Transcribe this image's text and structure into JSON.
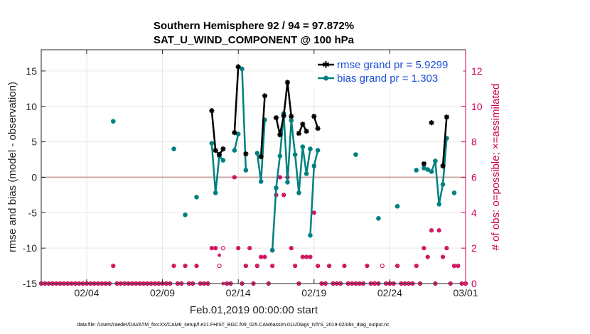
{
  "chart_data": {
    "type": "line",
    "title": "Southern Hemisphere 92 / 94 = 97.872%",
    "subtitle": "SAT_U_WIND_COMPONENT @ 100 hPa",
    "xlabel": "Feb.01,2019 00:00:00 start",
    "ylabel": "rmse and bias (model - observation)",
    "ylabel_right": "# of obs: o=possible; ×=assimilated",
    "footer": "data file: /Users/raeder/DAI/ATM_forcXX/CAM6_setup/f.e21.FHIST_BGC.f09_025.CAM6assim.011/Diags_NTrS_2019-02/obs_diag_output.nc",
    "xlim": [
      1,
      29
    ],
    "ylim": [
      -15,
      18
    ],
    "ylim_right": [
      0,
      13.2
    ],
    "xticks": [
      {
        "x": 4,
        "label": "02/04"
      },
      {
        "x": 9,
        "label": "02/09"
      },
      {
        "x": 14,
        "label": "02/14"
      },
      {
        "x": 19,
        "label": "02/19"
      },
      {
        "x": 24,
        "label": "02/24"
      },
      {
        "x": 29,
        "label": "03/01"
      }
    ],
    "yticks": [
      -15,
      -10,
      -5,
      0,
      5,
      10,
      15
    ],
    "yticks_right": [
      0,
      2,
      4,
      6,
      8,
      10,
      12
    ],
    "colors": {
      "rmse": "#000000",
      "bias": "#008080",
      "obs": "#cc0055",
      "zero": "#c9a9a6",
      "grid": "#e6e6e6"
    },
    "series": [
      {
        "name": "rmse",
        "label": "rmse grand pr = 5.9299",
        "points": [
          [
            5.75,
            null
          ],
          [
            12.25,
            9.4
          ],
          [
            12.5,
            3.8
          ],
          [
            12.75,
            3.2
          ],
          [
            13.0,
            4.0
          ],
          [
            13.25,
            null
          ],
          [
            13.75,
            6.3
          ],
          [
            14.0,
            15.6
          ],
          [
            14.25,
            null
          ],
          [
            14.5,
            3.3
          ],
          [
            14.75,
            null
          ],
          [
            15.5,
            2.9
          ],
          [
            15.75,
            11.5
          ],
          [
            16.0,
            null
          ],
          [
            16.5,
            8.4
          ],
          [
            16.75,
            6.0
          ],
          [
            17.0,
            8.7
          ],
          [
            17.25,
            13.4
          ],
          [
            17.5,
            8.6
          ],
          [
            17.75,
            null
          ],
          [
            18.0,
            6.2
          ],
          [
            18.25,
            7.5
          ],
          [
            18.5,
            6.5
          ],
          [
            18.75,
            null
          ],
          [
            19.0,
            8.6
          ],
          [
            19.25,
            6.9
          ],
          [
            19.5,
            null
          ],
          [
            26.25,
            1.9
          ],
          [
            26.5,
            null
          ],
          [
            26.75,
            7.7
          ],
          [
            27.0,
            null
          ],
          [
            27.5,
            1.6
          ],
          [
            27.75,
            8.5
          ],
          [
            28.0,
            null
          ]
        ]
      },
      {
        "name": "bias",
        "label": "bias grand pr = 1.303",
        "points": [
          [
            5.75,
            7.9
          ],
          [
            6.0,
            null
          ],
          [
            9.75,
            4.0
          ],
          [
            10.0,
            null
          ],
          [
            10.5,
            -5.3
          ],
          [
            10.75,
            null
          ],
          [
            11.25,
            -2.8
          ],
          [
            11.5,
            null
          ],
          [
            12.25,
            4.8
          ],
          [
            12.5,
            -2.2
          ],
          [
            12.75,
            3.0
          ],
          [
            13.0,
            2.4
          ],
          [
            13.25,
            null
          ],
          [
            13.75,
            3.8
          ],
          [
            14.0,
            6.1
          ],
          [
            14.25,
            null
          ],
          [
            14.25,
            15.3
          ],
          [
            14.5,
            1.0
          ],
          [
            14.75,
            null
          ],
          [
            15.25,
            3.4
          ],
          [
            15.5,
            -0.6
          ],
          [
            15.75,
            8.1
          ],
          [
            16.0,
            null
          ],
          [
            16.25,
            -10.3
          ],
          [
            16.5,
            -1.5
          ],
          [
            16.75,
            3.0
          ],
          [
            17.0,
            9.0
          ],
          [
            17.25,
            -0.7
          ],
          [
            17.5,
            8.0
          ],
          [
            17.75,
            3.2
          ],
          [
            18.0,
            -2.2
          ],
          [
            18.25,
            4.3
          ],
          [
            18.5,
            0.5
          ],
          [
            18.75,
            4.0
          ],
          [
            19.0,
            null
          ],
          [
            18.75,
            -8.2
          ],
          [
            19.0,
            1.6
          ],
          [
            19.25,
            3.8
          ],
          [
            19.5,
            null
          ],
          [
            21.75,
            3.2
          ],
          [
            22.0,
            null
          ],
          [
            23.25,
            -5.8
          ],
          [
            23.5,
            null
          ],
          [
            24.5,
            -4.1
          ],
          [
            24.75,
            null
          ],
          [
            25.75,
            1.0
          ],
          [
            26.0,
            null
          ],
          [
            26.25,
            1.3
          ],
          [
            26.5,
            1.1
          ],
          [
            26.75,
            0.8
          ],
          [
            27.0,
            2.3
          ],
          [
            27.25,
            -3.8
          ],
          [
            27.5,
            -1.0
          ],
          [
            27.75,
            5.5
          ],
          [
            28.0,
            null
          ],
          [
            28.25,
            -2.2
          ],
          [
            28.5,
            null
          ]
        ]
      }
    ],
    "obs_possible": [
      [
        1.0,
        0
      ],
      [
        1.25,
        0
      ],
      [
        1.5,
        0
      ],
      [
        1.75,
        0
      ],
      [
        2.0,
        0
      ],
      [
        2.25,
        0
      ],
      [
        2.5,
        0
      ],
      [
        2.75,
        0
      ],
      [
        3.0,
        0
      ],
      [
        3.25,
        0
      ],
      [
        3.5,
        0
      ],
      [
        3.75,
        0
      ],
      [
        4.0,
        0
      ],
      [
        4.25,
        0
      ],
      [
        4.5,
        0
      ],
      [
        4.75,
        0
      ],
      [
        5.0,
        0
      ],
      [
        5.25,
        0
      ],
      [
        5.5,
        0
      ],
      [
        5.75,
        1
      ],
      [
        6.0,
        0
      ],
      [
        6.25,
        0
      ],
      [
        6.5,
        0
      ],
      [
        6.75,
        0
      ],
      [
        7.0,
        0
      ],
      [
        7.25,
        0
      ],
      [
        7.5,
        0
      ],
      [
        7.75,
        0
      ],
      [
        8.0,
        0
      ],
      [
        8.25,
        0
      ],
      [
        8.5,
        0
      ],
      [
        8.75,
        0
      ],
      [
        9.0,
        0
      ],
      [
        9.25,
        0
      ],
      [
        9.5,
        0
      ],
      [
        9.75,
        1
      ],
      [
        10.0,
        0
      ],
      [
        10.25,
        0
      ],
      [
        10.5,
        1
      ],
      [
        10.75,
        0
      ],
      [
        11.0,
        0
      ],
      [
        11.25,
        1
      ],
      [
        11.5,
        0
      ],
      [
        11.75,
        0
      ],
      [
        12.0,
        0
      ],
      [
        12.25,
        2
      ],
      [
        12.5,
        2
      ],
      [
        12.75,
        1
      ],
      [
        13.0,
        2
      ],
      [
        13.25,
        0
      ],
      [
        13.5,
        0
      ],
      [
        13.75,
        6
      ],
      [
        14.0,
        2
      ],
      [
        14.25,
        0
      ],
      [
        14.5,
        1
      ],
      [
        14.75,
        2
      ],
      [
        15.0,
        0
      ],
      [
        15.25,
        1
      ],
      [
        15.5,
        1.5
      ],
      [
        15.75,
        1.5
      ],
      [
        16.0,
        0
      ],
      [
        16.25,
        1
      ],
      [
        16.5,
        5
      ],
      [
        16.75,
        6
      ],
      [
        17.0,
        5
      ],
      [
        17.25,
        6
      ],
      [
        17.5,
        2
      ],
      [
        17.75,
        1
      ],
      [
        18.0,
        0
      ],
      [
        18.25,
        1.5
      ],
      [
        18.5,
        1.5
      ],
      [
        18.75,
        1.5
      ],
      [
        19.0,
        4
      ],
      [
        19.25,
        1
      ],
      [
        19.5,
        0
      ],
      [
        19.75,
        0
      ],
      [
        20.0,
        1
      ],
      [
        20.25,
        0
      ],
      [
        20.5,
        0
      ],
      [
        20.75,
        0
      ],
      [
        21.0,
        1
      ],
      [
        21.25,
        0
      ],
      [
        21.5,
        0
      ],
      [
        21.75,
        0
      ],
      [
        22.0,
        0
      ],
      [
        22.25,
        0
      ],
      [
        22.5,
        1
      ],
      [
        22.75,
        0
      ],
      [
        23.0,
        0
      ],
      [
        23.25,
        0
      ],
      [
        23.5,
        1
      ],
      [
        23.75,
        0
      ],
      [
        24.0,
        0
      ],
      [
        24.25,
        0
      ],
      [
        24.5,
        1
      ],
      [
        24.75,
        0
      ],
      [
        25.0,
        0
      ],
      [
        25.25,
        0
      ],
      [
        25.5,
        0
      ],
      [
        25.75,
        1
      ],
      [
        26.0,
        0
      ],
      [
        26.25,
        2
      ],
      [
        26.5,
        1.5
      ],
      [
        26.75,
        3
      ],
      [
        27.0,
        0
      ],
      [
        27.25,
        3
      ],
      [
        27.5,
        1.5
      ],
      [
        27.75,
        2
      ],
      [
        28.0,
        0
      ],
      [
        28.25,
        1
      ],
      [
        28.5,
        1
      ],
      [
        28.75,
        0
      ],
      [
        29.0,
        0
      ]
    ],
    "obs_assimilated": [
      [
        1.0,
        0
      ],
      [
        1.25,
        0
      ],
      [
        1.5,
        0
      ],
      [
        1.75,
        0
      ],
      [
        2.0,
        0
      ],
      [
        2.25,
        0
      ],
      [
        2.5,
        0
      ],
      [
        2.75,
        0
      ],
      [
        3.0,
        0
      ],
      [
        3.25,
        0
      ],
      [
        3.5,
        0
      ],
      [
        3.75,
        0
      ],
      [
        4.0,
        0
      ],
      [
        4.25,
        0
      ],
      [
        4.5,
        0
      ],
      [
        4.75,
        0
      ],
      [
        5.0,
        0
      ],
      [
        5.25,
        0
      ],
      [
        5.5,
        0
      ],
      [
        5.75,
        1
      ],
      [
        6.0,
        0
      ],
      [
        6.25,
        0
      ],
      [
        6.5,
        0
      ],
      [
        6.75,
        0
      ],
      [
        7.0,
        0
      ],
      [
        7.25,
        0
      ],
      [
        7.5,
        0
      ],
      [
        7.75,
        0
      ],
      [
        8.0,
        0
      ],
      [
        8.25,
        0
      ],
      [
        8.5,
        0
      ],
      [
        8.75,
        0
      ],
      [
        9.0,
        0
      ],
      [
        9.25,
        0
      ],
      [
        9.5,
        0
      ],
      [
        9.75,
        1
      ],
      [
        10.0,
        0
      ],
      [
        10.25,
        0
      ],
      [
        10.5,
        1
      ],
      [
        10.75,
        0
      ],
      [
        11.0,
        0
      ],
      [
        11.25,
        1
      ],
      [
        11.5,
        0
      ],
      [
        11.75,
        0
      ],
      [
        12.0,
        0
      ],
      [
        12.25,
        2
      ],
      [
        12.5,
        2
      ],
      [
        12.75,
        1.6
      ],
      [
        13.0,
        0
      ],
      [
        13.25,
        0
      ],
      [
        13.5,
        0
      ],
      [
        13.75,
        6
      ],
      [
        14.0,
        2
      ],
      [
        14.25,
        0
      ],
      [
        14.5,
        1
      ],
      [
        14.75,
        2
      ],
      [
        15.0,
        0
      ],
      [
        15.25,
        1
      ],
      [
        15.5,
        1.5
      ],
      [
        15.75,
        1.5
      ],
      [
        16.0,
        0
      ],
      [
        16.25,
        1
      ],
      [
        16.5,
        5
      ],
      [
        16.75,
        6
      ],
      [
        17.0,
        5
      ],
      [
        17.25,
        6
      ],
      [
        17.5,
        2
      ],
      [
        17.75,
        1
      ],
      [
        18.0,
        0
      ],
      [
        18.25,
        1.5
      ],
      [
        18.5,
        1.5
      ],
      [
        18.75,
        1.5
      ],
      [
        19.0,
        4
      ],
      [
        19.25,
        1
      ],
      [
        19.5,
        0
      ],
      [
        19.75,
        0
      ],
      [
        20.0,
        1
      ],
      [
        20.25,
        0
      ],
      [
        20.5,
        0
      ],
      [
        20.75,
        0
      ],
      [
        21.0,
        1
      ],
      [
        21.25,
        0
      ],
      [
        21.5,
        0
      ],
      [
        21.75,
        0
      ],
      [
        22.0,
        0
      ],
      [
        22.25,
        0
      ],
      [
        22.5,
        1
      ],
      [
        22.75,
        0
      ],
      [
        23.0,
        0
      ],
      [
        23.25,
        0
      ],
      [
        23.75,
        0
      ],
      [
        24.0,
        0
      ],
      [
        24.25,
        0
      ],
      [
        24.5,
        1
      ],
      [
        24.75,
        0
      ],
      [
        25.0,
        0
      ],
      [
        25.25,
        0
      ],
      [
        25.5,
        0
      ],
      [
        25.75,
        1
      ],
      [
        26.0,
        0
      ],
      [
        26.25,
        2
      ],
      [
        26.5,
        1.5
      ],
      [
        26.75,
        3
      ],
      [
        27.0,
        0
      ],
      [
        27.25,
        3
      ],
      [
        27.5,
        1.5
      ],
      [
        27.75,
        2
      ],
      [
        28.0,
        0
      ],
      [
        28.25,
        1
      ],
      [
        28.5,
        1
      ],
      [
        28.75,
        0
      ],
      [
        29.0,
        0
      ]
    ]
  }
}
